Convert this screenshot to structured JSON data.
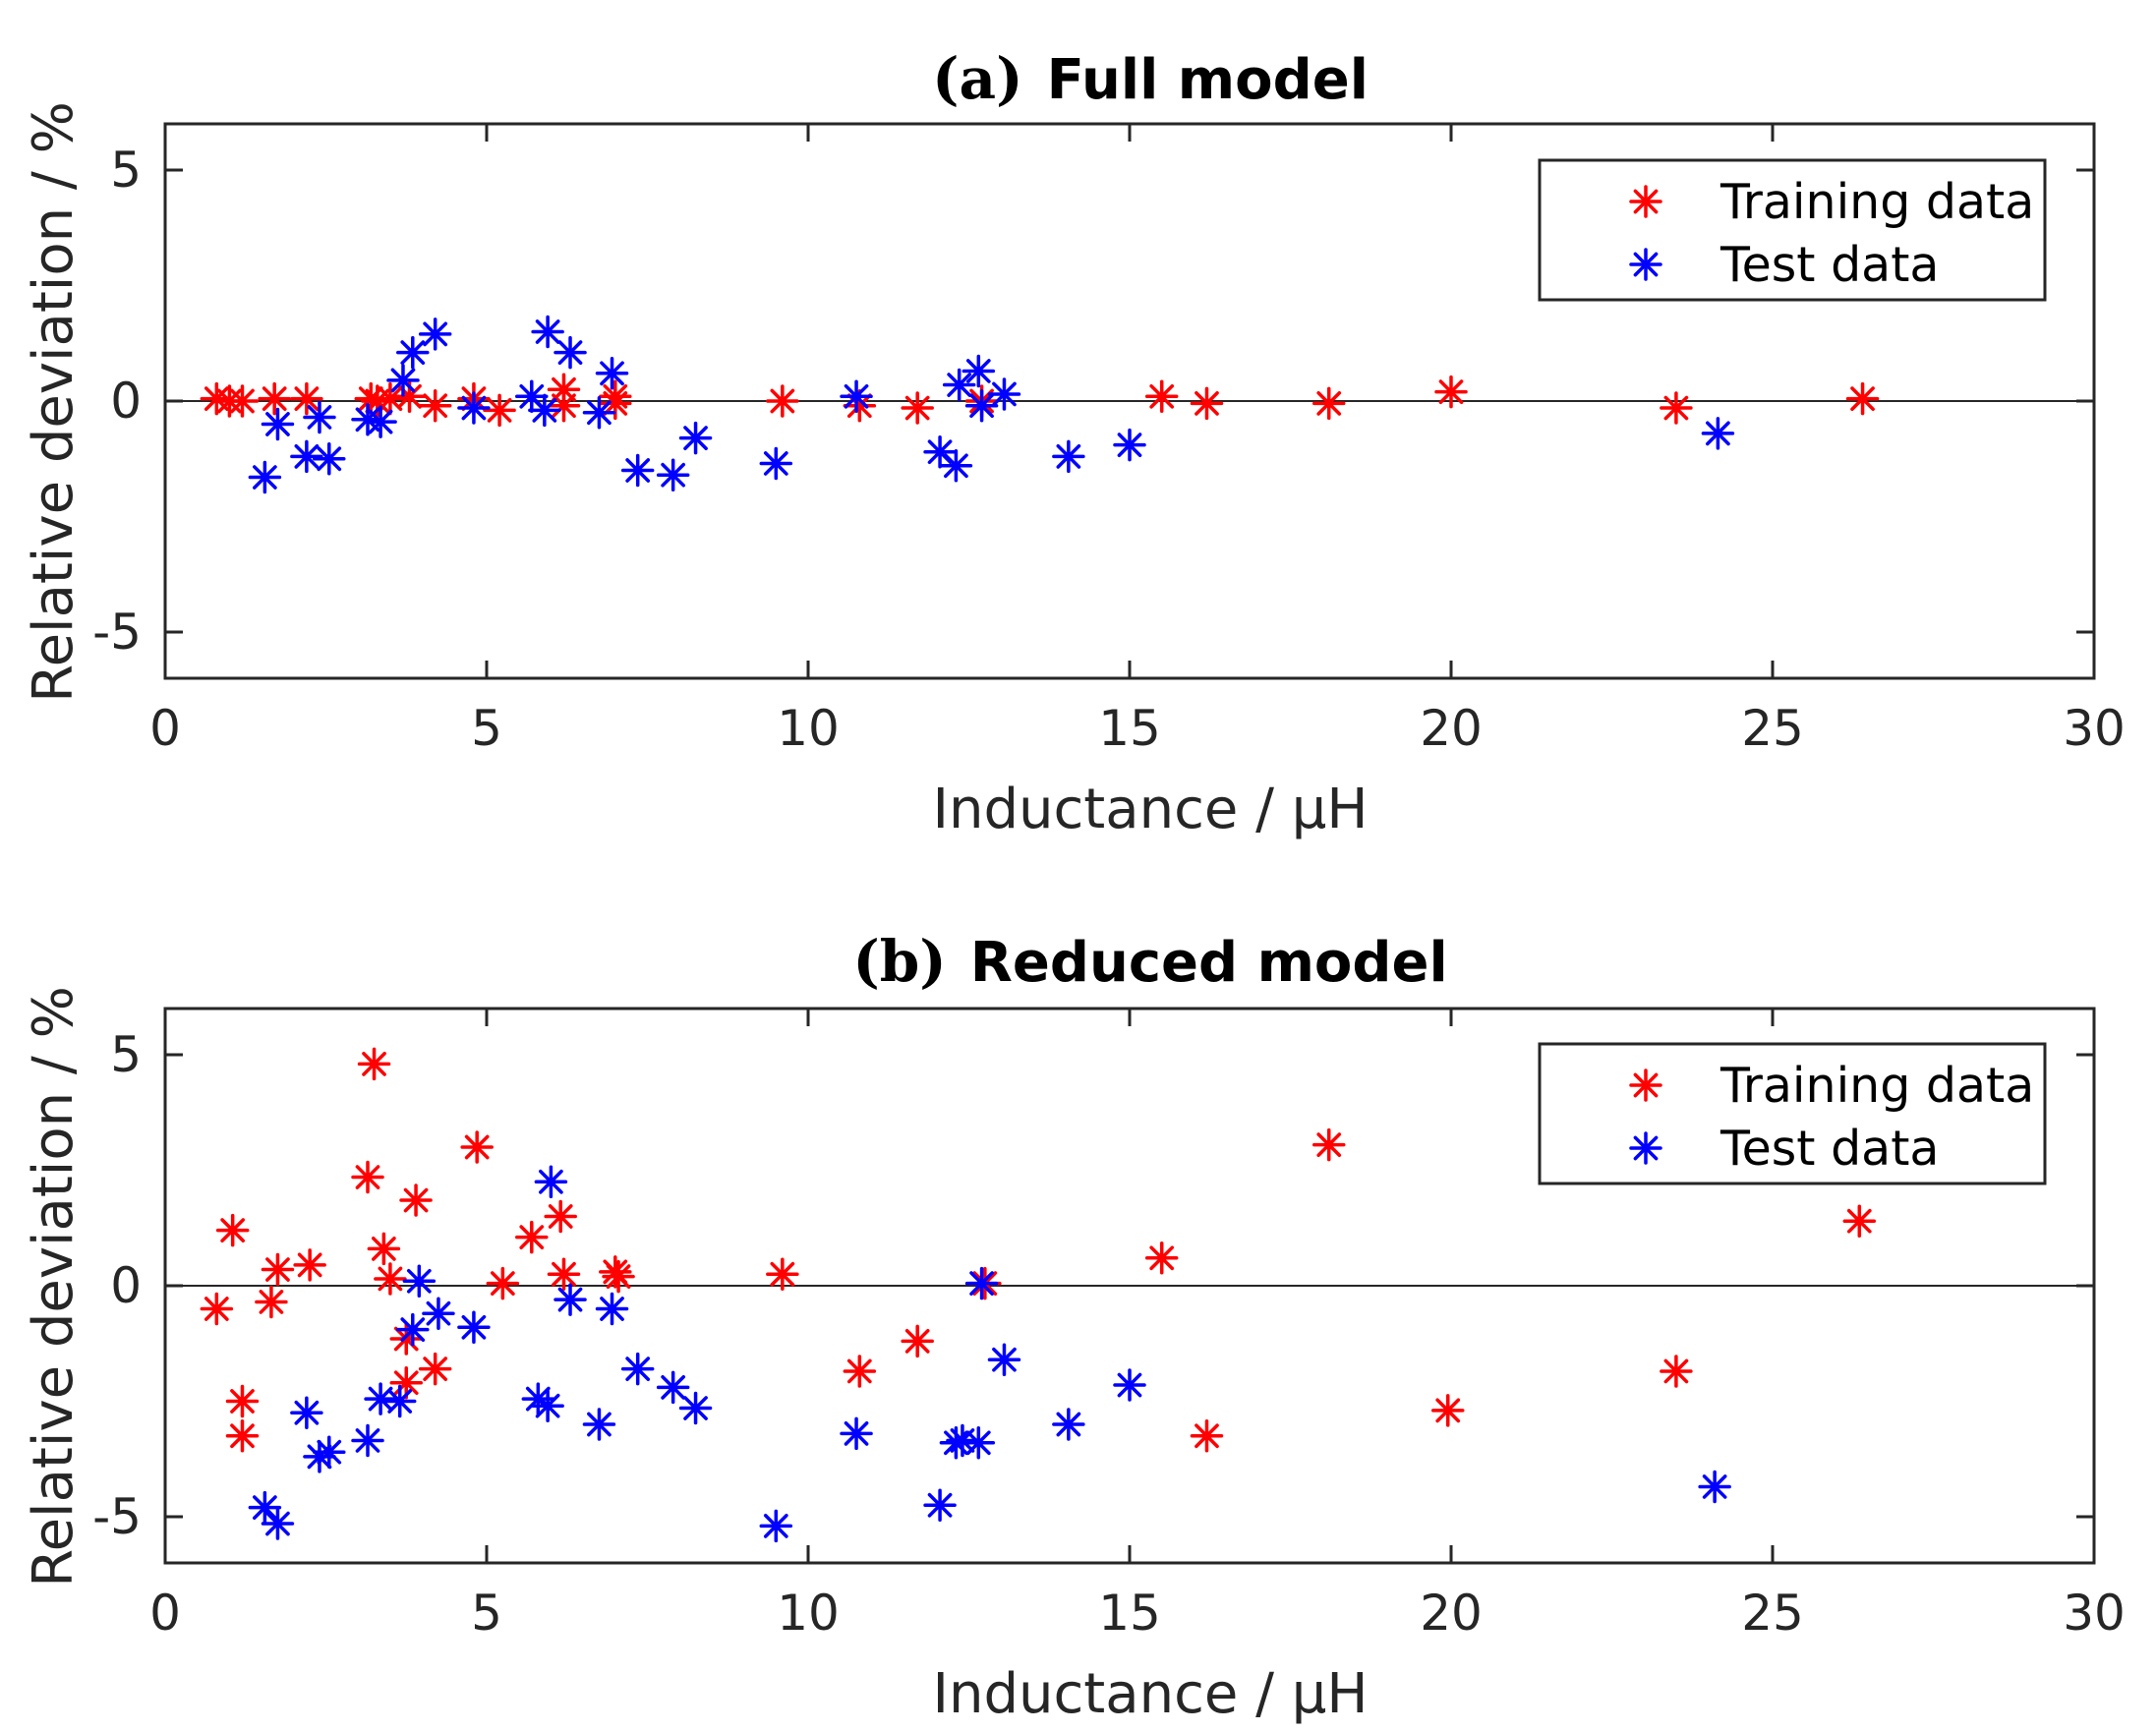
{
  "chart_data": [
    {
      "type": "scatter",
      "title_prefix": "(a)",
      "title": "Full model",
      "xlabel": "Inductance / μH",
      "ylabel": "Relative deviation / %",
      "xlim": [
        0,
        30
      ],
      "ylim": [
        -6,
        6
      ],
      "xticks": [
        0,
        5,
        10,
        15,
        20,
        25,
        30
      ],
      "yticks": [
        -5,
        0,
        5
      ],
      "reference_line_y": 0,
      "grid": false,
      "legend_position": "top-right",
      "series": [
        {
          "name": "Training data",
          "color": "#ff0000",
          "marker": "asterisk",
          "points": [
            [
              0.8,
              0.05
            ],
            [
              1.0,
              0.0
            ],
            [
              1.2,
              0.0
            ],
            [
              1.7,
              0.05
            ],
            [
              2.2,
              0.05
            ],
            [
              3.2,
              0.05
            ],
            [
              3.3,
              0.0
            ],
            [
              3.5,
              0.05
            ],
            [
              3.8,
              0.1
            ],
            [
              4.2,
              -0.1
            ],
            [
              4.8,
              0.05
            ],
            [
              5.2,
              -0.2
            ],
            [
              6.2,
              0.25
            ],
            [
              6.2,
              -0.1
            ],
            [
              7.0,
              0.1
            ],
            [
              7.0,
              -0.05
            ],
            [
              9.6,
              0.0
            ],
            [
              10.8,
              -0.1
            ],
            [
              11.7,
              -0.15
            ],
            [
              12.7,
              0.0
            ],
            [
              15.5,
              0.1
            ],
            [
              16.2,
              -0.05
            ],
            [
              18.1,
              -0.05
            ],
            [
              20.0,
              0.2
            ],
            [
              23.5,
              -0.15
            ],
            [
              26.4,
              0.05
            ]
          ]
        },
        {
          "name": "Test data",
          "color": "#0000ff",
          "marker": "asterisk",
          "points": [
            [
              1.55,
              -1.65
            ],
            [
              1.75,
              -0.5
            ],
            [
              2.2,
              -1.2
            ],
            [
              2.4,
              -0.35
            ],
            [
              2.55,
              -1.25
            ],
            [
              3.15,
              -0.4
            ],
            [
              3.35,
              -0.45
            ],
            [
              3.7,
              0.45
            ],
            [
              3.85,
              1.05
            ],
            [
              4.2,
              1.45
            ],
            [
              4.8,
              -0.15
            ],
            [
              5.7,
              0.1
            ],
            [
              5.9,
              -0.2
            ],
            [
              5.95,
              1.5
            ],
            [
              6.3,
              1.05
            ],
            [
              6.75,
              -0.25
            ],
            [
              6.95,
              0.6
            ],
            [
              7.35,
              -1.5
            ],
            [
              7.9,
              -1.6
            ],
            [
              8.25,
              -0.8
            ],
            [
              9.5,
              -1.35
            ],
            [
              10.75,
              0.1
            ],
            [
              12.05,
              -1.1
            ],
            [
              12.3,
              -1.4
            ],
            [
              12.35,
              0.35
            ],
            [
              12.65,
              0.65
            ],
            [
              12.7,
              -0.1
            ],
            [
              13.05,
              0.15
            ],
            [
              14.05,
              -1.2
            ],
            [
              15.0,
              -0.95
            ],
            [
              24.15,
              -0.7
            ]
          ]
        }
      ]
    },
    {
      "type": "scatter",
      "title_prefix": "(b)",
      "title": "Reduced model",
      "xlabel": "Inductance / μH",
      "ylabel": "Relative deviation / %",
      "xlim": [
        0,
        30
      ],
      "ylim": [
        -6,
        6
      ],
      "xticks": [
        0,
        5,
        10,
        15,
        20,
        25,
        30
      ],
      "yticks": [
        -5,
        0,
        5
      ],
      "reference_line_y": 0,
      "grid": false,
      "legend_position": "top-right",
      "series": [
        {
          "name": "Training data",
          "color": "#ff0000",
          "marker": "asterisk",
          "points": [
            [
              0.8,
              -0.5
            ],
            [
              1.05,
              1.2
            ],
            [
              1.2,
              -2.5
            ],
            [
              1.2,
              -3.25
            ],
            [
              1.65,
              -0.35
            ],
            [
              1.75,
              0.35
            ],
            [
              2.25,
              0.45
            ],
            [
              3.15,
              2.35
            ],
            [
              3.25,
              4.8
            ],
            [
              3.4,
              0.8
            ],
            [
              3.5,
              0.15
            ],
            [
              3.75,
              -1.15
            ],
            [
              3.75,
              -2.1
            ],
            [
              3.9,
              1.85
            ],
            [
              4.2,
              -1.8
            ],
            [
              4.85,
              3.0
            ],
            [
              5.25,
              0.05
            ],
            [
              5.7,
              1.05
            ],
            [
              6.15,
              1.5
            ],
            [
              6.2,
              0.25
            ],
            [
              7.0,
              0.3
            ],
            [
              7.05,
              0.2
            ],
            [
              9.6,
              0.25
            ],
            [
              10.8,
              -1.85
            ],
            [
              11.7,
              -1.2
            ],
            [
              12.75,
              0.05
            ],
            [
              15.5,
              0.6
            ],
            [
              16.2,
              -3.25
            ],
            [
              18.1,
              3.05
            ],
            [
              19.95,
              -2.7
            ],
            [
              23.5,
              -1.85
            ],
            [
              26.35,
              1.4
            ]
          ]
        },
        {
          "name": "Test data",
          "color": "#0000ff",
          "marker": "asterisk",
          "points": [
            [
              1.55,
              -4.8
            ],
            [
              1.75,
              -5.15
            ],
            [
              2.2,
              -2.75
            ],
            [
              2.4,
              -3.7
            ],
            [
              2.55,
              -3.6
            ],
            [
              3.15,
              -3.35
            ],
            [
              3.35,
              -2.45
            ],
            [
              3.65,
              -2.5
            ],
            [
              3.85,
              -0.95
            ],
            [
              3.95,
              0.1
            ],
            [
              4.25,
              -0.6
            ],
            [
              4.8,
              -0.9
            ],
            [
              5.8,
              -2.45
            ],
            [
              5.95,
              -2.6
            ],
            [
              6.0,
              2.25
            ],
            [
              6.3,
              -0.3
            ],
            [
              6.75,
              -3.0
            ],
            [
              6.95,
              -0.5
            ],
            [
              7.35,
              -1.8
            ],
            [
              7.9,
              -2.2
            ],
            [
              8.25,
              -2.65
            ],
            [
              9.5,
              -5.2
            ],
            [
              10.75,
              -3.2
            ],
            [
              12.05,
              -4.75
            ],
            [
              12.3,
              -3.4
            ],
            [
              12.4,
              -3.35
            ],
            [
              12.65,
              -3.4
            ],
            [
              12.7,
              0.05
            ],
            [
              13.05,
              -1.6
            ],
            [
              14.05,
              -3.0
            ],
            [
              15.0,
              -2.15
            ],
            [
              24.1,
              -4.35
            ]
          ]
        }
      ]
    }
  ]
}
